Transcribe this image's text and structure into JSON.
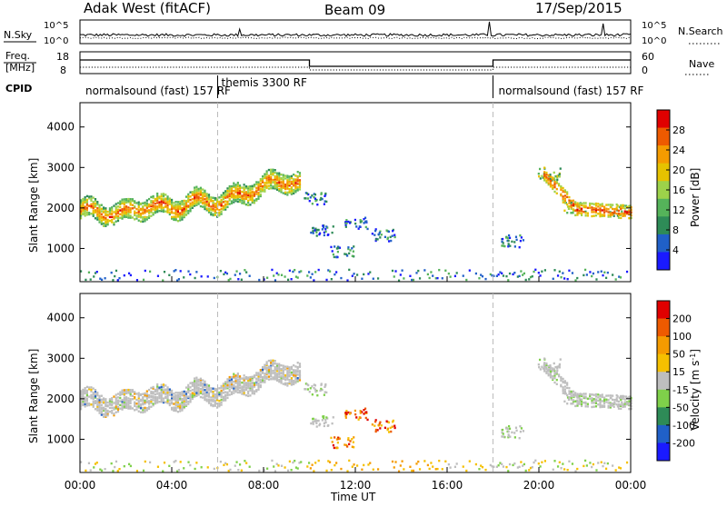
{
  "header": {
    "title": "Adak West (fitACF)",
    "beam": "Beam 09",
    "date": "17/Sep/2015"
  },
  "noise_panel": {
    "left_label": "N.Sky",
    "right_label": "N.Search",
    "left_ticks": [
      "10^5",
      "10^0"
    ],
    "right_ticks": [
      "10^5",
      "10^0"
    ]
  },
  "freq_panel": {
    "left_label_line1": "Freq.",
    "left_label_line2": "[MHz]",
    "right_label": "Nave",
    "left_ticks": [
      "18",
      "8"
    ],
    "right_ticks": [
      "60",
      "0"
    ],
    "cpid_label": "CPID"
  },
  "cpid_segments": [
    {
      "label": "normalsound (fast) 157 RF",
      "start_hour": 0,
      "end_hour": 6
    },
    {
      "label": "themis 3300 RF",
      "start_hour": 6,
      "end_hour": 18
    },
    {
      "label": "normalsound (fast) 157 RF",
      "start_hour": 18,
      "end_hour": 24
    }
  ],
  "time_axis": {
    "title": "Time UT",
    "ticks": [
      "00:00",
      "04:00",
      "08:00",
      "12:00",
      "16:00",
      "20:00",
      "00:00"
    ],
    "range_hours": [
      0,
      24
    ]
  },
  "range_axis": {
    "title": "Slant Range [km]",
    "ticks": [
      "1000",
      "2000",
      "3000",
      "4000"
    ],
    "range_km": [
      180,
      4600
    ]
  },
  "power_colorbar": {
    "title": "Power [dB]",
    "ticks": [
      "4",
      "8",
      "12",
      "16",
      "20",
      "24",
      "28"
    ],
    "colors": [
      "#1a1aff",
      "#2060c8",
      "#2e8b57",
      "#55b35a",
      "#9dd24a",
      "#e6c200",
      "#f59b00",
      "#ee5a00",
      "#e00000"
    ]
  },
  "velocity_colorbar": {
    "title": "Velocity [m s",
    "title_sup": "-1",
    "title_end": "]",
    "ticks": [
      "200",
      "100",
      "50",
      "15",
      "-15",
      "-50",
      "-100",
      "-200"
    ],
    "colors": [
      "#1a1aff",
      "#2060c8",
      "#2e8b57",
      "#7fd04a",
      "#bebebe",
      "#f5c000",
      "#f59b00",
      "#ee5a00",
      "#e00000"
    ]
  },
  "chart_data": {
    "type": "heatmap",
    "title": "Adak West (fitACF)",
    "xlabel": "Time UT",
    "ylabel": "Slant Range [km]",
    "xlim_hours": [
      0,
      24
    ],
    "ylim_km": [
      180,
      4600
    ],
    "scatter_echo_band": {
      "range_km": [
        1700,
        2700
      ],
      "path": [
        {
          "hour": 0.0,
          "range_km": 1950
        },
        {
          "hour": 1.0,
          "range_km": 1850
        },
        {
          "hour": 2.0,
          "range_km": 1850
        },
        {
          "hour": 3.0,
          "range_km": 2050
        },
        {
          "hour": 4.0,
          "range_km": 1950
        },
        {
          "hour": 5.0,
          "range_km": 2150
        },
        {
          "hour": 6.0,
          "range_km": 2100
        },
        {
          "hour": 7.0,
          "range_km": 2300
        },
        {
          "hour": 8.0,
          "range_km": 2550
        },
        {
          "hour": 9.0,
          "range_km": 2650
        },
        {
          "hour": 9.6,
          "range_km": 2600
        }
      ]
    },
    "secondary_echoes": [
      {
        "hour": 10.2,
        "range_km": 2200
      },
      {
        "hour": 10.5,
        "range_km": 1400
      },
      {
        "hour": 11.4,
        "range_km": 900
      },
      {
        "hour": 12.0,
        "range_km": 1600
      },
      {
        "hour": 13.2,
        "range_km": 1300
      },
      {
        "hour": 18.8,
        "range_km": 1150
      },
      {
        "hour": 20.4,
        "range_km": 2800
      },
      {
        "hour": 21.5,
        "range_km": 2000
      },
      {
        "hour": 23.5,
        "range_km": 1900
      }
    ],
    "ground_scatter_band_km": [
      180,
      450
    ]
  }
}
